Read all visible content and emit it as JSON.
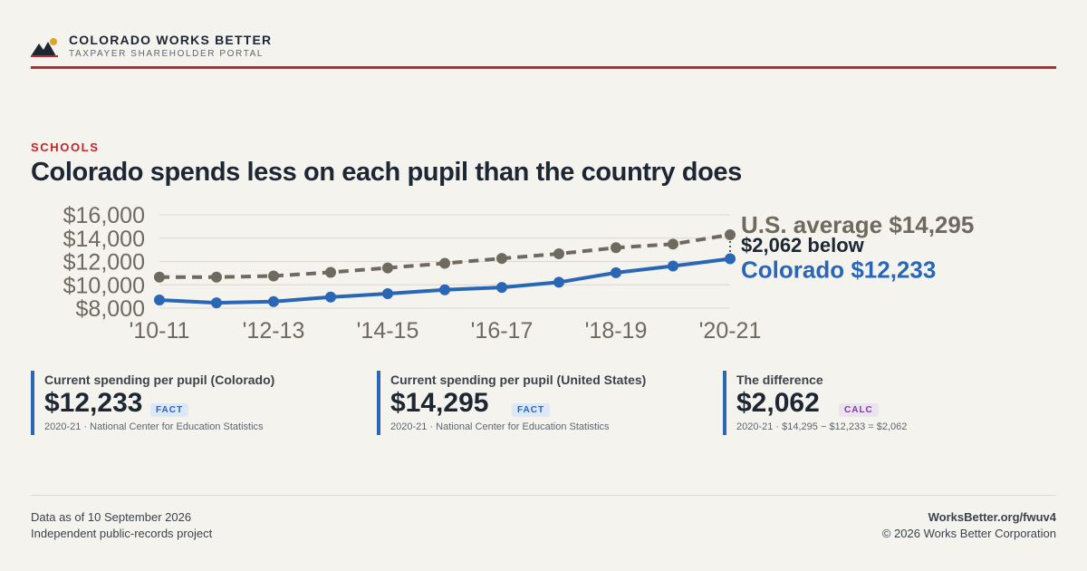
{
  "header": {
    "brand": "COLORADO WORKS BETTER",
    "tagline": "TAXPAYER SHAREHOLDER PORTAL"
  },
  "section_label": "SCHOOLS",
  "title": "Colorado spends less on each pupil than the country does",
  "colors": {
    "accent_red": "#c1272d",
    "colorado_blue": "#2a66b6",
    "us_gray": "#6f6a5f"
  },
  "chart_data": {
    "type": "line",
    "categories": [
      "'10-11",
      "'11-12",
      "'12-13",
      "'13-14",
      "'14-15",
      "'15-16",
      "'16-17",
      "'17-18",
      "'18-19",
      "'19-20",
      "'20-21"
    ],
    "x_tick_labels": [
      "'10-11",
      "'12-13",
      "'14-15",
      "'16-17",
      "'18-19",
      "'20-21"
    ],
    "y_tick_labels": [
      "$8,000",
      "$10,000",
      "$12,000",
      "$14,000",
      "$16,000"
    ],
    "y_ticks": [
      8000,
      10000,
      12000,
      14000,
      16000
    ],
    "ylim": [
      8000,
      16000
    ],
    "grid": true,
    "series": [
      {
        "name": "U.S. average",
        "label": "U.S. average $14,295",
        "style": "dashed",
        "color": "#6f6a5f",
        "values": [
          10660,
          10660,
          10760,
          11070,
          11450,
          11840,
          12260,
          12660,
          13180,
          13490,
          14295
        ]
      },
      {
        "name": "Colorado",
        "label": "Colorado $12,233",
        "style": "solid",
        "color": "#2a66b6",
        "values": [
          8700,
          8460,
          8560,
          8950,
          9240,
          9570,
          9780,
          10220,
          11040,
          11610,
          12233
        ]
      }
    ],
    "gap_annotation": "$2,062 below"
  },
  "stats": [
    {
      "label": "Current spending per pupil (Colorado)",
      "value": "$12,233",
      "badge": "FACT",
      "note": "2020-21 · National Center for Education Statistics"
    },
    {
      "label": "Current spending per pupil (United States)",
      "value": "$14,295",
      "badge": "FACT",
      "note": "2020-21 · National Center for Education Statistics"
    },
    {
      "label": "The difference",
      "value": "$2,062",
      "badge": "CALC",
      "note": "2020-21 · $14,295 − $12,233 = $2,062"
    }
  ],
  "footer": {
    "date": "Data as of 10 September 2026",
    "project": "Independent public-records project",
    "url": "WorksBetter.org/fwuv4",
    "copyright": "© 2026 Works Better Corporation"
  }
}
